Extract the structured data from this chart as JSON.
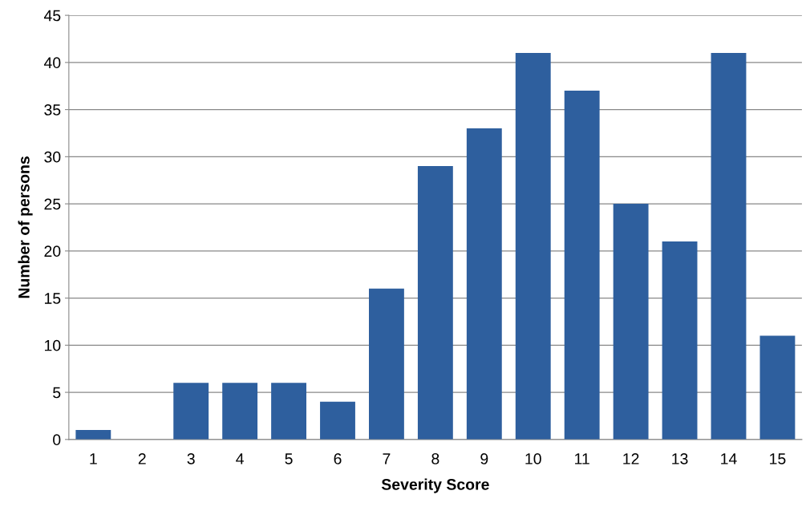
{
  "chart_data": {
    "type": "bar",
    "xlabel": "Severity Score",
    "ylabel": "Number of persons",
    "categories": [
      "1",
      "2",
      "3",
      "4",
      "5",
      "6",
      "7",
      "8",
      "9",
      "10",
      "11",
      "12",
      "13",
      "14",
      "15"
    ],
    "values": [
      1,
      0,
      6,
      6,
      6,
      4,
      16,
      29,
      33,
      41,
      37,
      25,
      21,
      41,
      11
    ],
    "color": "#2e5f9e",
    "ylim": [
      0,
      45
    ],
    "yticks": [
      0,
      5,
      10,
      15,
      20,
      25,
      30,
      35,
      40,
      45
    ],
    "grid": "y",
    "legend": false
  }
}
